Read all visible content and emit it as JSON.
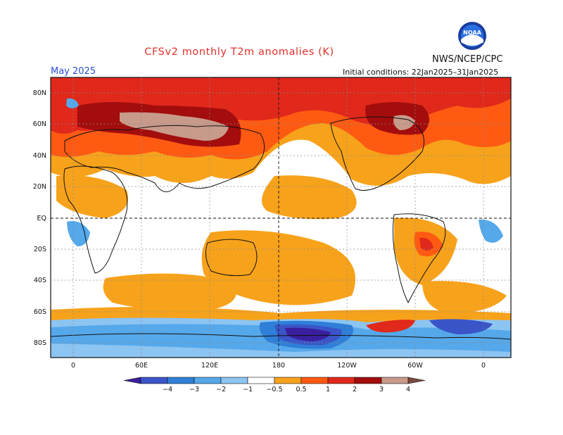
{
  "header": {
    "title": "CFSv2 monthly T2m anomalies (K)",
    "agency": "NWS/NCEP/CPC",
    "month": "May 2025",
    "initial_conditions": "Initial conditions: 22Jan2025–31Jan2025",
    "logo_icon": "noaa-logo-icon",
    "logo_text": "NOAA"
  },
  "map": {
    "lat_labels": [
      "80N",
      "60N",
      "40N",
      "20N",
      "EQ",
      "20S",
      "40S",
      "60S",
      "80S"
    ],
    "lon_labels": [
      "0",
      "60E",
      "120E",
      "180",
      "120W",
      "60W",
      "0"
    ]
  },
  "colorbar": {
    "ticks": [
      "−4",
      "−3",
      "−2",
      "−1",
      "−0.5",
      "0.5",
      "1",
      "2",
      "3",
      "4"
    ],
    "colors": [
      "#3a1f9e",
      "#3a55c8",
      "#2f7fd8",
      "#55a8ea",
      "#8cc4f2",
      "#ffffff",
      "#f7a21b",
      "#ff5a12",
      "#e0281b",
      "#a30d0d",
      "#c89a8a",
      "#7a4a40"
    ]
  }
}
